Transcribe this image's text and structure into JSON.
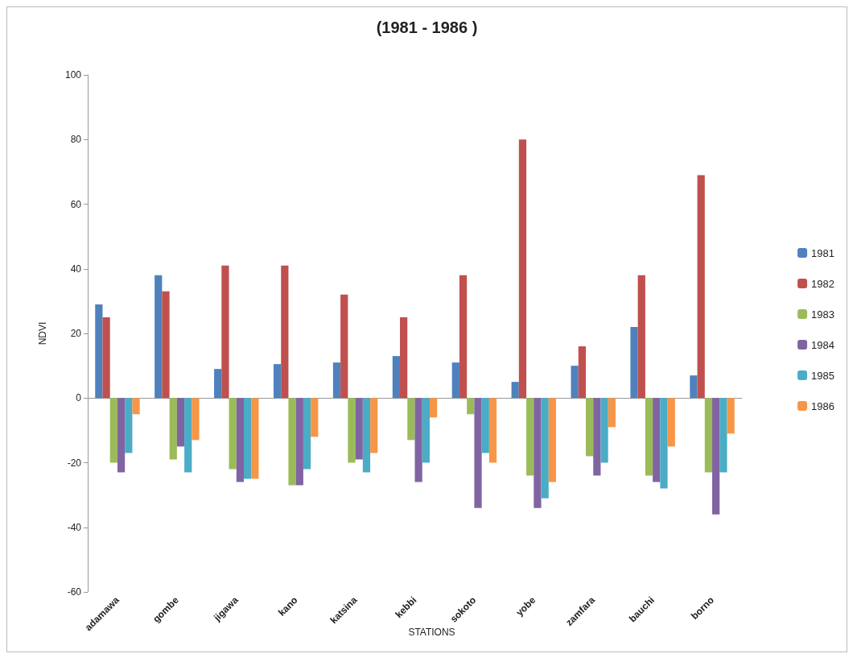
{
  "chart_data": {
    "type": "bar",
    "title": "(1981 - 1986 )",
    "xlabel": "STATIONS",
    "ylabel": "NDVI",
    "categories": [
      "adamawa",
      "gombe",
      "jigawa",
      "kano",
      "katsina",
      "kebbi",
      "sokoto",
      "yobe",
      "zamfara",
      "bauchi",
      "borno"
    ],
    "series": [
      {
        "name": "1981",
        "color": "#4f81bd",
        "values": [
          29,
          38,
          9,
          10.5,
          11,
          13,
          11,
          5,
          10,
          22,
          7
        ]
      },
      {
        "name": "1982",
        "color": "#c0504d",
        "values": [
          25,
          33,
          41,
          41,
          32,
          25,
          38,
          80,
          16,
          38,
          69
        ]
      },
      {
        "name": "1983",
        "color": "#9bbb59",
        "values": [
          -20,
          -19,
          -22,
          -27,
          -20,
          -13,
          -5,
          -24,
          -18,
          -24,
          -23
        ]
      },
      {
        "name": "1984",
        "color": "#8064a2",
        "values": [
          -23,
          -15,
          -26,
          -27,
          -19,
          -26,
          -34,
          -34,
          -24,
          -26,
          -36
        ]
      },
      {
        "name": "1985",
        "color": "#4bacc6",
        "values": [
          -17,
          -23,
          -25,
          -22,
          -23,
          -20,
          -17,
          -31,
          -20,
          -28,
          -23
        ]
      },
      {
        "name": "1986",
        "color": "#f79646",
        "values": [
          -5,
          -13,
          -25,
          -12,
          -17,
          -6,
          -20,
          -26,
          -9,
          -15,
          -11
        ]
      }
    ],
    "ylim": [
      -60,
      100
    ],
    "yticks": [
      -60,
      -40,
      -20,
      0,
      20,
      40,
      60,
      80,
      100
    ],
    "legend": "right"
  }
}
